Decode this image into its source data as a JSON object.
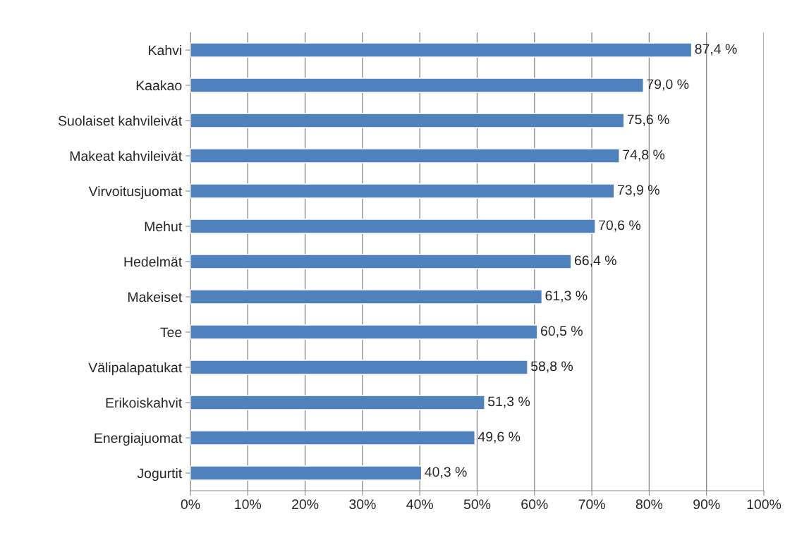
{
  "chart_data": {
    "type": "bar",
    "orientation": "horizontal",
    "categories": [
      "Kahvi",
      "Kaakao",
      "Suolaiset kahvileivät",
      "Makeat kahvileivät",
      "Virvoitusjuomat",
      "Mehut",
      "Hedelmät",
      "Makeiset",
      "Tee",
      "Välipalapatukat",
      "Erikoiskahvit",
      "Energiajuomat",
      "Jogurtit"
    ],
    "values": [
      87.4,
      79.0,
      75.6,
      74.8,
      73.9,
      70.6,
      66.4,
      61.3,
      60.5,
      58.8,
      51.3,
      49.6,
      40.3
    ],
    "value_labels": [
      "87,4 %",
      "79,0 %",
      "75,6 %",
      "74,8 %",
      "73,9 %",
      "70,6 %",
      "66,4 %",
      "61,3 %",
      "60,5 %",
      "58,8 %",
      "51,3 %",
      "49,6 %",
      "40,3 %"
    ],
    "color": "#4f81bd",
    "xlim": [
      0,
      100
    ],
    "xticks": [
      {
        "value": 0,
        "label": "0%"
      },
      {
        "value": 10,
        "label": "10%"
      },
      {
        "value": 20,
        "label": "20%"
      },
      {
        "value": 30,
        "label": "30%"
      },
      {
        "value": 40,
        "label": "40%"
      },
      {
        "value": 50,
        "label": "50%"
      },
      {
        "value": 60,
        "label": "60%"
      },
      {
        "value": 70,
        "label": "70%"
      },
      {
        "value": 80,
        "label": "80%"
      },
      {
        "value": 90,
        "label": "90%"
      },
      {
        "value": 100,
        "label": "100%"
      }
    ],
    "grid": "x"
  }
}
